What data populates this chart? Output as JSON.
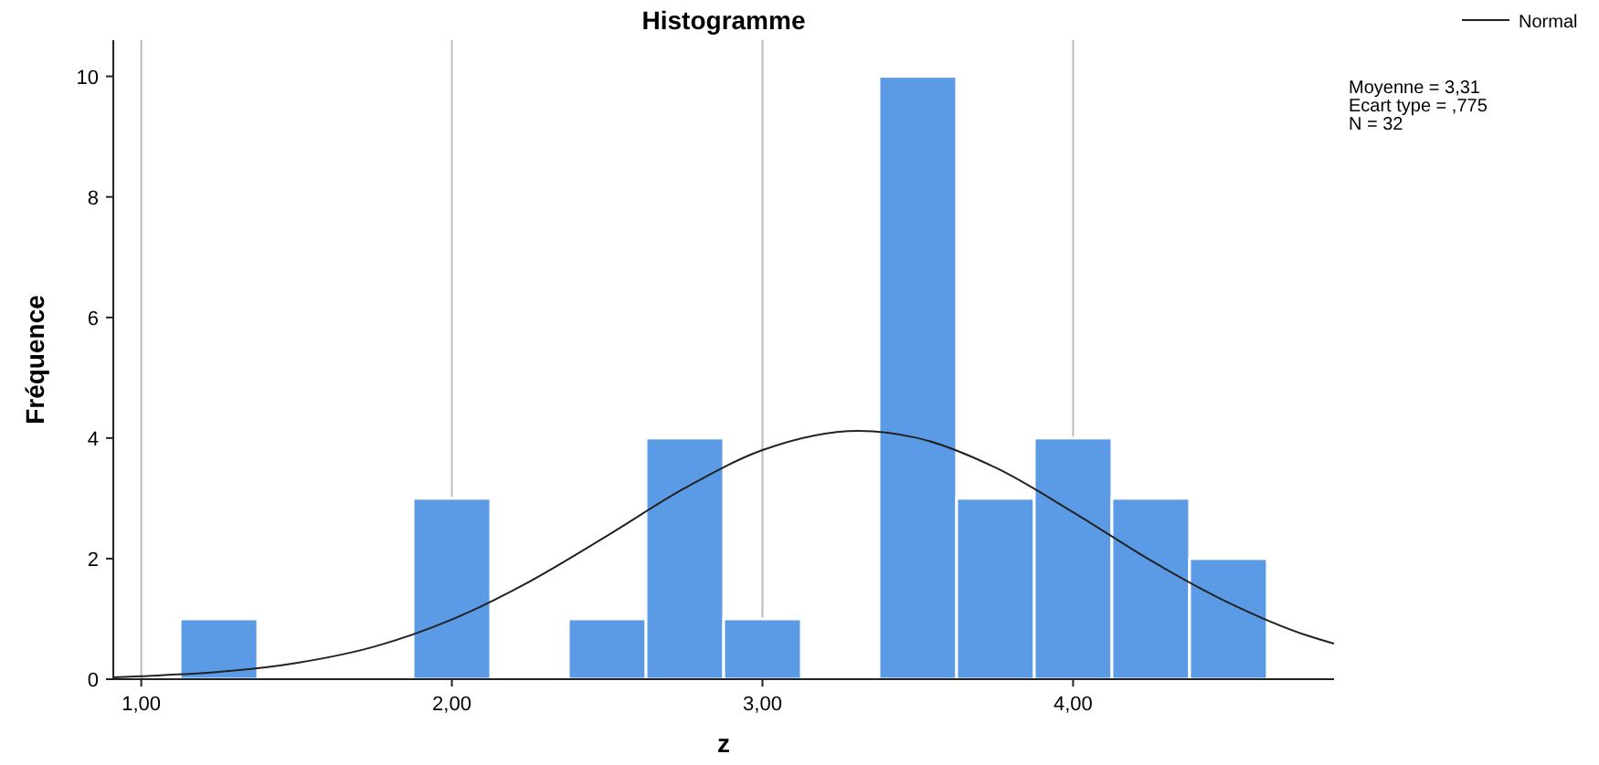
{
  "chart_data": {
    "type": "histogram",
    "title": "Histogramme",
    "xlabel": "z",
    "ylabel": "Fréquence",
    "bins": [
      1.125,
      1.375,
      1.625,
      1.875,
      2.125,
      2.375,
      2.625,
      2.875,
      3.125,
      3.375,
      3.625,
      3.875,
      4.125,
      4.375,
      4.625
    ],
    "values": [
      1,
      0,
      0,
      3,
      0,
      1,
      4,
      1,
      0,
      10,
      3,
      4,
      3,
      2
    ],
    "color": "#5b9be6",
    "series": [
      {
        "type": "line",
        "name": "Normal",
        "color": "#222222",
        "x": [
          0.91,
          1.0,
          1.25,
          1.5,
          1.75,
          2.0,
          2.25,
          2.5,
          2.75,
          3.0,
          3.31,
          3.5,
          3.75,
          4.0,
          4.25,
          4.5,
          4.75,
          4.84
        ],
        "values": [
          0.03,
          0.05,
          0.12,
          0.27,
          0.54,
          0.99,
          1.62,
          2.38,
          3.17,
          3.8,
          4.12,
          4.0,
          3.51,
          2.77,
          1.97,
          1.27,
          0.73,
          0.59
        ]
      }
    ],
    "xlim": [
      0.91,
      4.84
    ],
    "xticks": [
      {
        "value": 1,
        "label": "1,00"
      },
      {
        "value": 2,
        "label": "2,00"
      },
      {
        "value": 3,
        "label": "3,00"
      },
      {
        "value": 4,
        "label": "4,00"
      }
    ],
    "ylim": [
      0,
      10.6
    ],
    "yticks": [
      0,
      2,
      4,
      6,
      8,
      10
    ],
    "grid": "x",
    "legend": "top right",
    "annotations": [
      "Moyenne = 3,31",
      "Ecart type = ,775",
      "N = 32"
    ]
  }
}
